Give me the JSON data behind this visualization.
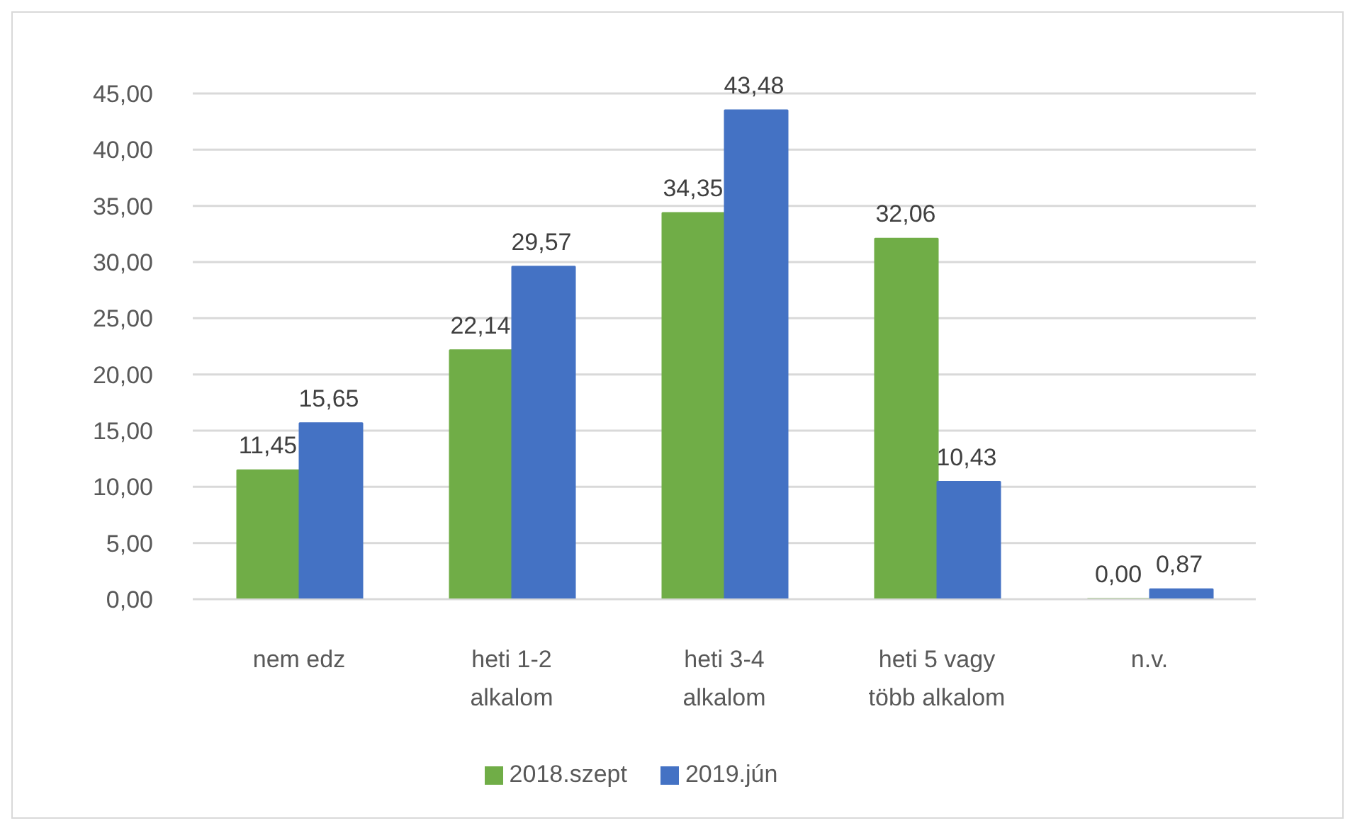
{
  "chart_data": {
    "type": "bar",
    "categories": [
      "nem edz",
      "heti 1-2 alkalom",
      "heti 3-4 alkalom",
      "heti 5 vagy több alkalom",
      "n.v."
    ],
    "series": [
      {
        "name": "2018.szept",
        "color": "#70ad47",
        "values": [
          11.45,
          22.14,
          34.35,
          32.06,
          0
        ],
        "value_labels": [
          "11,45",
          "22,14",
          "34,35",
          "32,06",
          "0,00"
        ]
      },
      {
        "name": "2019.jún",
        "color": "#4472c4",
        "values": [
          15.65,
          29.57,
          43.48,
          10.43,
          0.87
        ],
        "value_labels": [
          "15,65",
          "29,57",
          "43,48",
          "10,43",
          "0,87"
        ]
      }
    ],
    "ylim": [
      0,
      45
    ],
    "yticks": [
      {
        "value": 0,
        "label": "0,00"
      },
      {
        "value": 5,
        "label": "5,00"
      },
      {
        "value": 10,
        "label": "10,00"
      },
      {
        "value": 15,
        "label": "15,00"
      },
      {
        "value": 20,
        "label": "20,00"
      },
      {
        "value": 25,
        "label": "25,00"
      },
      {
        "value": 30,
        "label": "30,00"
      },
      {
        "value": 35,
        "label": "35,00"
      },
      {
        "value": 40,
        "label": "40,00"
      },
      {
        "value": 45,
        "label": "45,00"
      }
    ],
    "grid": "y",
    "legend": "bottom"
  }
}
